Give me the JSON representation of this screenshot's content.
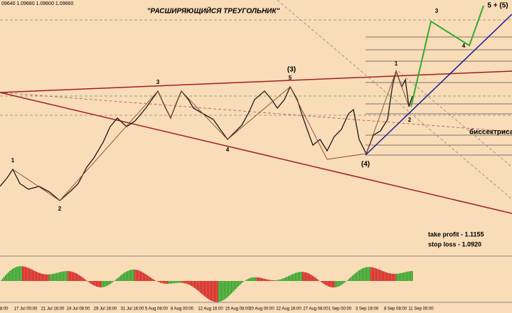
{
  "header": {
    "ohlc": "09640 1.09680 1.09600 1.09660",
    "title": "\"РАСШИРЯЮЩИЙСЯ  ТРЕУГОЛЬНИК\""
  },
  "wave_labels": [
    "1",
    "2",
    "3",
    "4",
    "5",
    "(3)",
    "(4)",
    "1",
    "2",
    "3",
    "4",
    "5 + (5)"
  ],
  "notes": [
    "биссектриса",
    "take profit - 1.1155",
    "stop loss - 1.0920"
  ],
  "x_axis": [
    "08:00",
    "17 Jul 00:00",
    "21 Jul 16:00",
    "24 Jul 08:00",
    "29 Jul 16:00",
    "31 Jul 16:00",
    "5 Aug 08:00",
    "8 Aug 00:00",
    "12 Aug 16:00",
    "15 Aug 08:00",
    "20 Aug 00:00",
    "22 Aug 16:00",
    "27 Aug 08:00",
    "1 Sep 00:00",
    "3 Sep 16:00",
    "8 Sep 08:00",
    "11 Sep 00:00"
  ]
}
